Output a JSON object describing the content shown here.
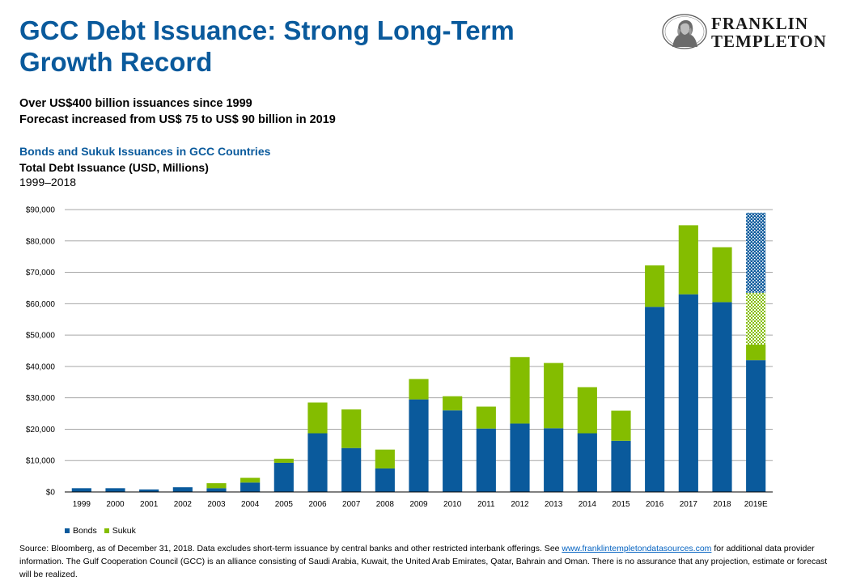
{
  "header": {
    "title": "GCC Debt Issuance: Strong Long-Term Growth Record",
    "logo_line1": "FRANKLIN",
    "logo_line2": "TEMPLETON",
    "subtitle_line1": "Over US$400 billion issuances since 1999",
    "subtitle_line2": "Forecast increased from US$ 75 to US$ 90 billion in 2019"
  },
  "chart_data": {
    "type": "bar",
    "stacked": true,
    "title": "Bonds and Sukuk Issuances in GCC Countries",
    "subtitle": "Total Debt Issuance (USD, Millions)",
    "period": "1999–2018",
    "categories": [
      "1999",
      "2000",
      "2001",
      "2002",
      "2003",
      "2004",
      "2005",
      "2006",
      "2007",
      "2008",
      "2009",
      "2010",
      "2011",
      "2012",
      "2013",
      "2014",
      "2015",
      "2016",
      "2017",
      "2018",
      "2019E"
    ],
    "series": [
      {
        "name": "Bonds",
        "color": "#0a5a9c",
        "values": [
          1200,
          1200,
          800,
          1500,
          1200,
          3000,
          9300,
          18700,
          14000,
          7500,
          29500,
          26000,
          20200,
          21800,
          20300,
          18700,
          16300,
          59000,
          63000,
          60500,
          42000
        ]
      },
      {
        "name": "Sukuk",
        "color": "#84bd00",
        "values": [
          0,
          0,
          0,
          0,
          1600,
          1500,
          1300,
          9800,
          12300,
          6000,
          6500,
          4500,
          7000,
          21200,
          20800,
          14700,
          9600,
          13200,
          22000,
          17500,
          5000
        ]
      }
    ],
    "forecast": {
      "category": "2019E",
      "segments": [
        {
          "kind": "sukuk-forecast",
          "from": 47000,
          "to": 63500,
          "color": "#84bd00"
        },
        {
          "kind": "bonds-forecast",
          "from": 63500,
          "to": 89000,
          "color": "#0a5a9c"
        }
      ]
    },
    "ylim": [
      0,
      90000
    ],
    "yticks": [
      0,
      10000,
      20000,
      30000,
      40000,
      50000,
      60000,
      70000,
      80000,
      90000
    ],
    "ytick_labels": [
      "$0",
      "$10,000",
      "$20,000",
      "$30,000",
      "$40,000",
      "$50,000",
      "$60,000",
      "$70,000",
      "$80,000",
      "$90,000"
    ],
    "grid": true,
    "legend": "bottom-left"
  },
  "footer": {
    "text_before": "Source: Bloomberg, as of December 31, 2018. Data excludes short-term issuance by central banks and other restricted interbank offerings. See ",
    "link": "www.franklintempletondatasources.com",
    "text_after": " for additional data provider information. The Gulf Cooperation Council (GCC) is an alliance consisting of Saudi Arabia, Kuwait, the United Arab Emirates, Qatar, Bahrain and Oman. There is no assurance that any projection, estimate or forecast will be realized."
  }
}
